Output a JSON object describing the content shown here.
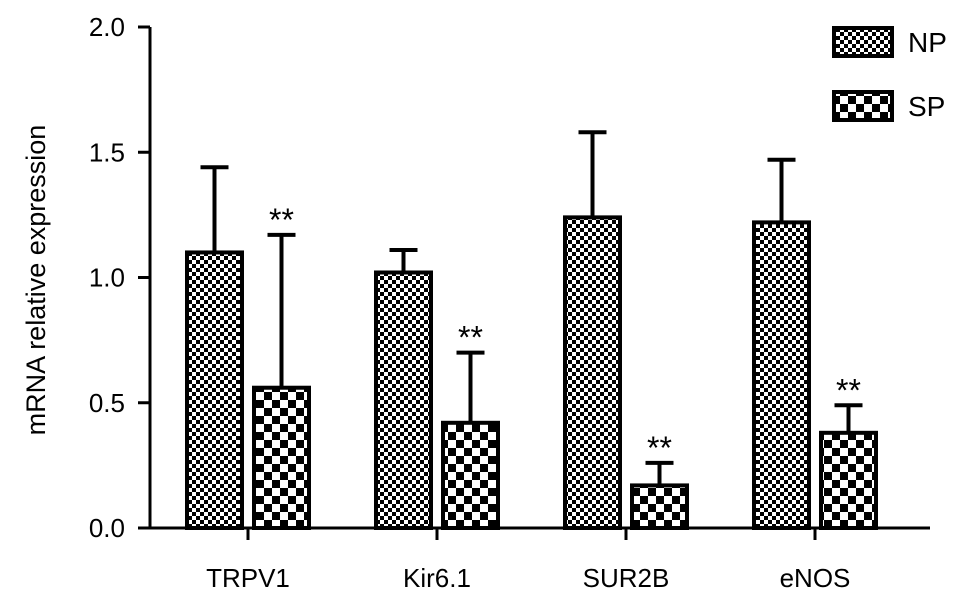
{
  "chart_data": {
    "type": "bar",
    "title": "",
    "xlabel": "",
    "ylabel": "mRNA relative expression",
    "ylim": [
      0,
      2.0
    ],
    "yticks": [
      "0.0",
      "0.5",
      "1.0",
      "1.5",
      "2.0"
    ],
    "categories": [
      "TRPV1",
      "Kir6.1",
      "SUR2B",
      "eNOS"
    ],
    "legend_position": "top-right",
    "grid": false,
    "series": [
      {
        "name": "NP",
        "pattern": "fine-checker",
        "values": [
          1.1,
          1.02,
          1.24,
          1.22
        ],
        "errors": [
          0.34,
          0.09,
          0.34,
          0.25
        ],
        "annotations": [
          "",
          "",
          "",
          ""
        ]
      },
      {
        "name": "SP",
        "pattern": "coarse-checker",
        "values": [
          0.56,
          0.42,
          0.17,
          0.38
        ],
        "errors": [
          0.61,
          0.28,
          0.09,
          0.11
        ],
        "annotations": [
          "**",
          "**",
          "**",
          "**"
        ]
      }
    ],
    "colors": {
      "ink": "#000000",
      "background": "#ffffff"
    }
  }
}
